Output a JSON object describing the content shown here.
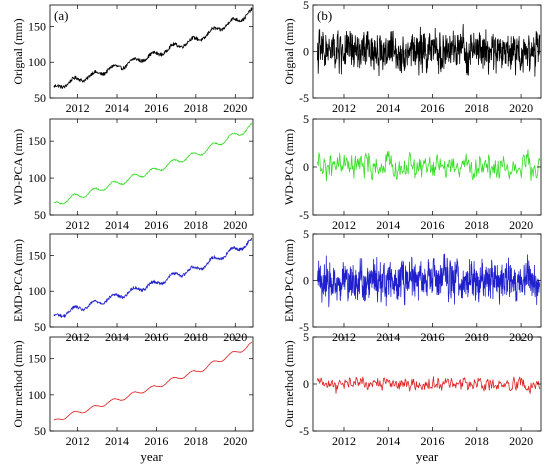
{
  "figure": {
    "xlabel": "year"
  },
  "chart_data": [
    {
      "type": "line",
      "panel_label": "(a)",
      "ylabel": "Orignal (mm)",
      "xlim": [
        2010.6,
        2020.9
      ],
      "ylim": [
        50,
        180
      ],
      "xticks": [
        2012,
        2014,
        2016,
        2018,
        2020
      ],
      "yticks": [
        50,
        100,
        150
      ],
      "color": "#000000",
      "noise": 2.5,
      "series": [
        {
          "x": [
            2010.8,
            2011.5,
            2012.0,
            2012.5,
            2013.0,
            2013.5,
            2014.0,
            2014.5,
            2015.0,
            2015.5,
            2016.0,
            2016.5,
            2017.0,
            2017.5,
            2018.0,
            2018.5,
            2019.0,
            2019.5,
            2020.0,
            2020.5,
            2020.85
          ],
          "y": [
            62,
            72,
            75,
            80,
            83,
            90,
            92,
            98,
            102,
            108,
            110,
            118,
            122,
            128,
            131,
            138,
            145,
            152,
            158,
            165,
            170
          ]
        }
      ]
    },
    {
      "type": "line",
      "panel_label": "(b)",
      "ylabel": "Orignal (mm)",
      "xlim": [
        2010.6,
        2020.9
      ],
      "ylim": [
        -5,
        5
      ],
      "xticks": [
        2012,
        2014,
        2016,
        2018,
        2020
      ],
      "yticks": [
        -5,
        0,
        5
      ],
      "color": "#000000",
      "noise": 1.6,
      "series": [
        {
          "x": [
            2010.8,
            2020.85
          ],
          "y": [
            0,
            0
          ]
        }
      ]
    },
    {
      "type": "line",
      "ylabel": "WD-PCA (mm)",
      "xlim": [
        2010.6,
        2020.9
      ],
      "ylim": [
        50,
        180
      ],
      "xticks": [
        2012,
        2014,
        2016,
        2018,
        2020
      ],
      "yticks": [
        50,
        100,
        150
      ],
      "color": "#33dd22",
      "noise": 0.8,
      "series": [
        {
          "x": [
            2010.8,
            2011.5,
            2012.0,
            2012.5,
            2013.0,
            2013.5,
            2014.0,
            2014.5,
            2015.0,
            2015.5,
            2016.0,
            2016.5,
            2017.0,
            2017.5,
            2018.0,
            2018.5,
            2019.0,
            2019.5,
            2020.0,
            2020.5,
            2020.85
          ],
          "y": [
            62,
            72,
            75,
            80,
            83,
            90,
            92,
            98,
            102,
            108,
            110,
            118,
            122,
            128,
            131,
            138,
            145,
            152,
            158,
            165,
            170
          ]
        }
      ]
    },
    {
      "type": "line",
      "ylabel": "WD-PCA (mm)",
      "xlim": [
        2010.6,
        2020.9
      ],
      "ylim": [
        -5,
        5
      ],
      "xticks": [
        2012,
        2014,
        2016,
        2018,
        2020
      ],
      "yticks": [
        -5,
        0,
        5
      ],
      "color": "#33dd22",
      "noise": 1.0,
      "series": [
        {
          "x": [
            2010.8,
            2020.85
          ],
          "y": [
            0,
            0
          ]
        }
      ]
    },
    {
      "type": "line",
      "ylabel": "EMD-PCA (mm)",
      "xlim": [
        2010.6,
        2020.9
      ],
      "ylim": [
        50,
        180
      ],
      "xticks": [
        2012,
        2014,
        2016,
        2018,
        2020
      ],
      "yticks": [
        50,
        100,
        150
      ],
      "color": "#1f1fcc",
      "noise": 2.2,
      "series": [
        {
          "x": [
            2010.8,
            2011.5,
            2012.0,
            2012.5,
            2013.0,
            2013.5,
            2014.0,
            2014.5,
            2015.0,
            2015.5,
            2016.0,
            2016.5,
            2017.0,
            2017.5,
            2018.0,
            2018.5,
            2019.0,
            2019.5,
            2020.0,
            2020.5,
            2020.85
          ],
          "y": [
            62,
            72,
            75,
            80,
            83,
            90,
            92,
            98,
            102,
            108,
            110,
            118,
            122,
            128,
            131,
            138,
            145,
            152,
            158,
            165,
            170
          ]
        }
      ]
    },
    {
      "type": "line",
      "ylabel": "EMD-PCA (mm)",
      "xlim": [
        2010.6,
        2020.9
      ],
      "ylim": [
        -5,
        5
      ],
      "xticks": [
        2012,
        2014,
        2016,
        2018,
        2020
      ],
      "yticks": [
        -5,
        0,
        5
      ],
      "color": "#1f1fcc",
      "noise": 1.6,
      "series": [
        {
          "x": [
            2010.8,
            2020.85
          ],
          "y": [
            0,
            0
          ]
        }
      ]
    },
    {
      "type": "line",
      "ylabel": "Our method (mm)",
      "xlim": [
        2010.6,
        2020.9
      ],
      "ylim": [
        50,
        180
      ],
      "xticks": [
        2012,
        2014,
        2016,
        2018,
        2020
      ],
      "yticks": [
        50,
        100,
        150
      ],
      "color": "#dd2222",
      "noise": 0.3,
      "series": [
        {
          "x": [
            2010.8,
            2011.5,
            2012.0,
            2012.5,
            2013.0,
            2013.5,
            2014.0,
            2014.5,
            2015.0,
            2015.5,
            2016.0,
            2016.5,
            2017.0,
            2017.5,
            2018.0,
            2018.5,
            2019.0,
            2019.5,
            2020.0,
            2020.5,
            2020.85
          ],
          "y": [
            62,
            72,
            75,
            80,
            83,
            90,
            92,
            98,
            102,
            108,
            110,
            118,
            122,
            128,
            131,
            138,
            145,
            152,
            158,
            165,
            170
          ]
        }
      ]
    },
    {
      "type": "line",
      "ylabel": "Our method (mm)",
      "xlim": [
        2010.6,
        2020.9
      ],
      "ylim": [
        -5,
        5
      ],
      "xticks": [
        2012,
        2014,
        2016,
        2018,
        2020
      ],
      "yticks": [
        -5,
        0,
        5
      ],
      "color": "#dd2222",
      "noise": 0.55,
      "series": [
        {
          "x": [
            2010.8,
            2020.85
          ],
          "y": [
            0,
            0
          ]
        }
      ]
    }
  ]
}
